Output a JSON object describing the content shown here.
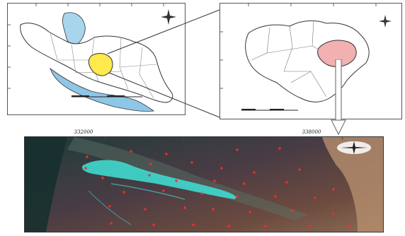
{
  "satellite_view": {
    "top_scale_labels": [
      "332000",
      "338000"
    ]
  },
  "colors": {
    "caspian_sea": "#a8d5ec",
    "persian_gulf": "#8ec6e6",
    "highlight_province": "#ffe94d",
    "highlight_county": "#f2b0b0",
    "sample_point": "#ff2a2a",
    "wetland_water": "#3fd9cf",
    "arrow": "#7a7a7a"
  }
}
